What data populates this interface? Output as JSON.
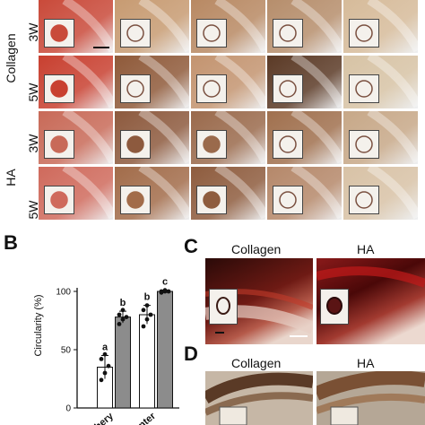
{
  "panel_a": {
    "row_groups": [
      {
        "label": "Collagen",
        "rows": [
          "3W",
          "5W"
        ]
      },
      {
        "label": "HA",
        "rows": [
          "3W",
          "5W"
        ]
      }
    ],
    "tile_colors": [
      [
        "#c94a3a",
        "#c79b72",
        "#b88963",
        "#b68e6c",
        "#d6bb9a"
      ],
      [
        "#c84030",
        "#8f5a3a",
        "#c39470",
        "#5b3a26",
        "#d7c3a5"
      ],
      [
        "#c86a58",
        "#8d5a3e",
        "#9a6a4c",
        "#a0704e",
        "#c7a888"
      ],
      [
        "#cf6a5c",
        "#a26c4a",
        "#8e5c3e",
        "#b5886a",
        "#d8c2a6"
      ]
    ]
  },
  "panel_b": {
    "letter": "B",
    "chart_data": {
      "type": "bar",
      "categories": [
        "Periphery",
        "Center"
      ],
      "series": [
        {
          "name": "",
          "color": "#ffffff",
          "values": [
            35,
            80
          ],
          "errors": [
            10,
            8
          ],
          "points": [
            [
              24,
              30,
              36,
              42,
              46
            ],
            [
              70,
              76,
              80,
              84,
              88
            ]
          ],
          "letters": [
            "a",
            "b"
          ]
        },
        {
          "name": "",
          "color": "#8c8c8c",
          "values": [
            78,
            100
          ],
          "errors": [
            5,
            1
          ],
          "points": [
            [
              72,
              76,
              78,
              80,
              84
            ],
            [
              99,
              100,
              100,
              100,
              101
            ]
          ],
          "letters": [
            "b",
            "c"
          ]
        }
      ],
      "ylabel": "Circularity (%)",
      "yticks": [
        "0",
        "50",
        "100"
      ],
      "ylim": [
        0,
        100
      ],
      "category_labels": [
        "eriphery",
        "Center"
      ]
    }
  },
  "panel_c": {
    "letter": "C",
    "col_labels": [
      "Collagen",
      "HA"
    ]
  },
  "panel_d": {
    "letter": "D",
    "col_labels": [
      "Collagen",
      "HA"
    ]
  }
}
